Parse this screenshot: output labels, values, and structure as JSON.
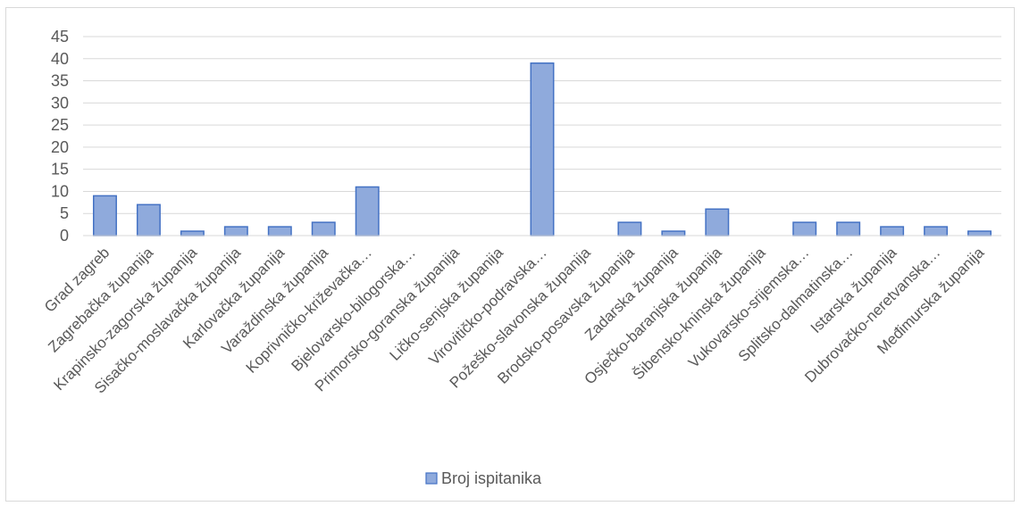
{
  "chart_data": {
    "type": "bar",
    "title": "",
    "xlabel": "",
    "ylabel": "",
    "ylim": [
      0,
      45
    ],
    "yticks": [
      0,
      5,
      10,
      15,
      20,
      25,
      30,
      35,
      40,
      45
    ],
    "grid": true,
    "legend_position": "bottom",
    "categories": [
      "Grad zagreb",
      "Zagrebačka županija",
      "Krapinsko-zagorska županija",
      "Sisačko-moslavačka županija",
      "Karlovačka županija",
      "Varaždinska županija",
      "Koprivničko-križevačka…",
      "Bjelovarsko-bilogorska…",
      "Primorsko-goranska županija",
      "Ličko-senjska županija",
      "Virovitičko-podravska…",
      "Požeško-slavonska županija",
      "Brodsko-posavska županija",
      "Zadarska županija",
      "Osječko-baranjska županija",
      "Šibensko-kninska županija",
      "Vukovarsko-srijemska…",
      "Splitsko-dalmatinska…",
      "Istarska županija",
      "Dubrovačko-neretvanska…",
      "Međimurska županija"
    ],
    "series": [
      {
        "name": "Broj ispitanika",
        "color": "#8FAADC",
        "border_color": "#4472C4",
        "values": [
          9,
          7,
          1,
          2,
          2,
          3,
          11,
          0,
          0,
          0,
          39,
          0,
          3,
          1,
          6,
          0,
          3,
          3,
          2,
          2,
          1
        ]
      }
    ]
  }
}
